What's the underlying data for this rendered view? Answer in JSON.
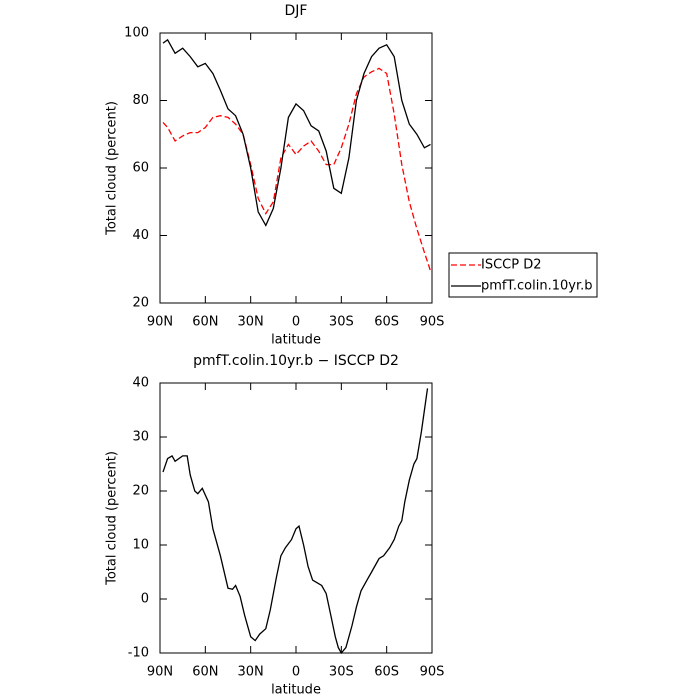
{
  "chart_data": [
    {
      "type": "line",
      "title": "DJF",
      "xlabel": "latitude",
      "ylabel": "Total cloud (percent)",
      "x": [
        88,
        85,
        80,
        75,
        70,
        65,
        60,
        55,
        50,
        45,
        40,
        35,
        30,
        25,
        20,
        15,
        10,
        5,
        0,
        -5,
        -10,
        -15,
        -20,
        -25,
        -30,
        -35,
        -40,
        -45,
        -50,
        -55,
        -60,
        -65,
        -70,
        -75,
        -80,
        -85,
        -89
      ],
      "series": [
        {
          "name": "ISCCP D2",
          "color": "#ff0000",
          "style": "dashed",
          "values": [
            73.5,
            72,
            68,
            69.5,
            70.5,
            70.5,
            72,
            75,
            75.5,
            75,
            73,
            70,
            61,
            51,
            46.5,
            50,
            63,
            67,
            64,
            66.5,
            68,
            65,
            61,
            61,
            66,
            73,
            82,
            87,
            88.5,
            89.5,
            88,
            76,
            61,
            50,
            42,
            35,
            29.5
          ]
        },
        {
          "name": "pmfT.colin.10yr.b",
          "color": "#000000",
          "style": "solid",
          "values": [
            97,
            98,
            94,
            95.5,
            93,
            90,
            91,
            88,
            83,
            77.5,
            75.5,
            70,
            60,
            47,
            43,
            48,
            60,
            75,
            79,
            77,
            72.5,
            71,
            65,
            54,
            52.5,
            63,
            80,
            88,
            93,
            95.5,
            96.5,
            93,
            80,
            73,
            70,
            66,
            67
          ]
        }
      ],
      "xlim": [
        90,
        -90
      ],
      "xticks": [
        {
          "value": 90,
          "label": "90N"
        },
        {
          "value": 60,
          "label": "60N"
        },
        {
          "value": 30,
          "label": "30N"
        },
        0,
        {
          "value": -30,
          "label": "30S"
        },
        {
          "value": -60,
          "label": "60S"
        },
        {
          "value": -90,
          "label": "90S"
        }
      ],
      "ylim": [
        20,
        100
      ],
      "yticks": [
        20,
        40,
        60,
        80,
        100
      ],
      "legend": "outside-right"
    },
    {
      "type": "line",
      "title": "pmfT.colin.10yr.b − ISCCP D2",
      "xlabel": "latitude",
      "ylabel": "Total cloud (percent)",
      "x": [
        88,
        85,
        82,
        80,
        75,
        72,
        70,
        67,
        65,
        62,
        58,
        55,
        50,
        45,
        42,
        40,
        37,
        34,
        30,
        27,
        24,
        20,
        17,
        13,
        10,
        7,
        3,
        0,
        -2,
        -5,
        -8,
        -11,
        -14,
        -17,
        -20,
        -23,
        -26,
        -28,
        -30,
        -33,
        -37,
        -40,
        -43,
        -47,
        -50,
        -55,
        -58,
        -62,
        -65,
        -68,
        -70,
        -72,
        -75,
        -78,
        -80,
        -83,
        -87
      ],
      "series": [
        {
          "color": "#000000",
          "style": "solid",
          "values": [
            23.5,
            26,
            26.5,
            25.5,
            26.5,
            26.5,
            23,
            20,
            19.5,
            20.5,
            18,
            13,
            8,
            2,
            1.8,
            2.5,
            0.5,
            -3,
            -7,
            -7.7,
            -6.5,
            -5.5,
            -2,
            4,
            8,
            9.5,
            11,
            13,
            13.5,
            10,
            6,
            3.5,
            3,
            2.5,
            1,
            -3,
            -7,
            -9,
            -10,
            -9,
            -5,
            -1.5,
            1.5,
            3.5,
            5,
            7.5,
            8,
            9.5,
            11,
            13.5,
            14.5,
            18,
            22,
            25,
            26,
            31,
            39
          ]
        }
      ],
      "xlim": [
        90,
        -90
      ],
      "xticks": [
        {
          "value": 90,
          "label": "90N"
        },
        {
          "value": 60,
          "label": "60N"
        },
        {
          "value": 30,
          "label": "30N"
        },
        0,
        {
          "value": -30,
          "label": "30S"
        },
        {
          "value": -60,
          "label": "60S"
        },
        {
          "value": -90,
          "label": "90S"
        }
      ],
      "ylim": [
        -10,
        40
      ],
      "yticks": [
        -10,
        0,
        10,
        20,
        30,
        40
      ]
    }
  ]
}
